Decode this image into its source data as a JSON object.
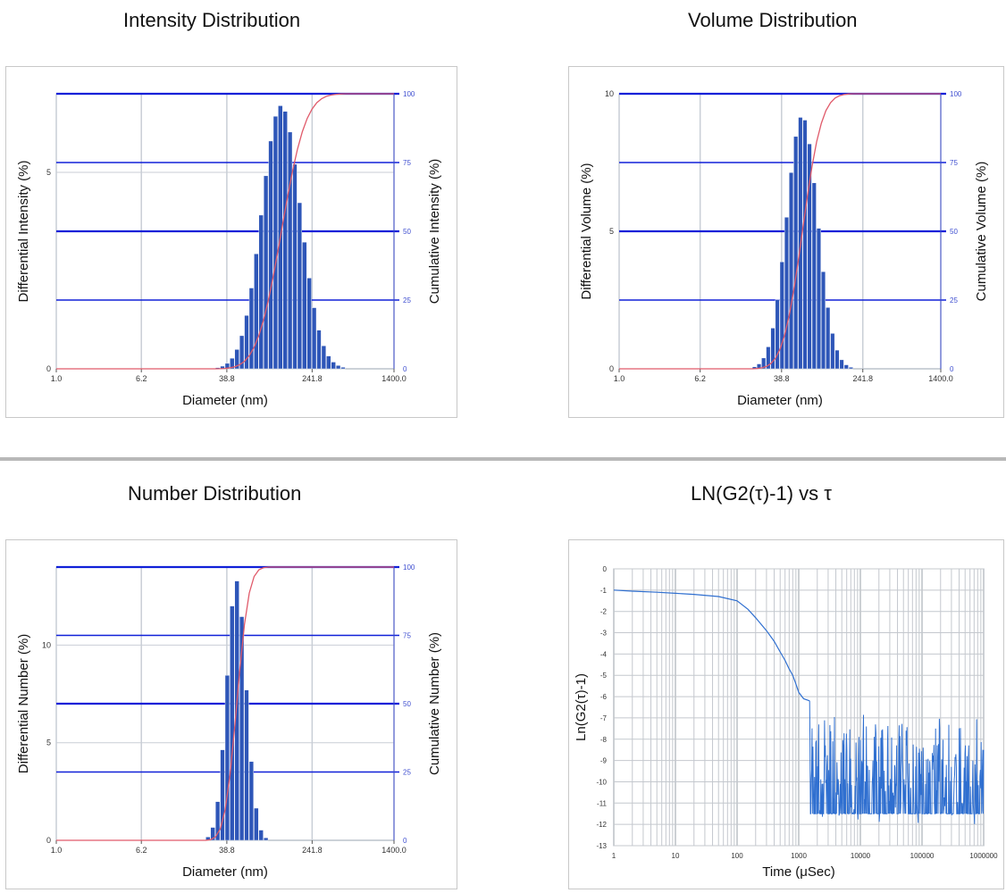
{
  "chart_data": [
    {
      "type": "bar",
      "title": "Intensity Distribution",
      "xlabel": "Diameter (nm)",
      "ylabel": "Differential Intensity (%)",
      "y2label": "Cumulative Intensity (%)",
      "xscale": "log",
      "xlim": [
        1.0,
        1400.0
      ],
      "xticks": [
        "1.0",
        "6.2",
        "38.8",
        "241.8",
        "1400.0"
      ],
      "ylim": [
        0,
        7
      ],
      "yticks": [
        "0",
        "5"
      ],
      "y2lim": [
        0,
        100
      ],
      "y2ticks": [
        "0",
        "25",
        "50",
        "75",
        "100"
      ],
      "bar_color": "#2e56b8",
      "cumulative_color": "#e05a6a",
      "peak_d": 125,
      "sigma_log10": 0.18,
      "peak_value": 6.7
    },
    {
      "type": "bar",
      "title": "Volume Distribution",
      "xlabel": "Diameter (nm)",
      "ylabel": "Differential Volume (%)",
      "y2label": "Cumulative Volume (%)",
      "xscale": "log",
      "xlim": [
        1.0,
        1400.0
      ],
      "xticks": [
        "1.0",
        "6.2",
        "38.8",
        "241.8",
        "1400.0"
      ],
      "ylim": [
        0,
        10
      ],
      "yticks": [
        "0",
        "5",
        "10"
      ],
      "y2lim": [
        0,
        100
      ],
      "y2ticks": [
        "0",
        "25",
        "50",
        "75",
        "100"
      ],
      "bar_color": "#2e56b8",
      "cumulative_color": "#e05a6a",
      "peak_d": 62,
      "sigma_log10": 0.15,
      "peak_value": 9.2
    },
    {
      "type": "bar",
      "title": "Number Distribution",
      "xlabel": "Diameter (nm)",
      "ylabel": "Differential Number (%)",
      "y2label": "Cumulative Number (%)",
      "xscale": "log",
      "xlim": [
        1.0,
        1400.0
      ],
      "xticks": [
        "1.0",
        "6.2",
        "38.8",
        "241.8",
        "1400.0"
      ],
      "ylim": [
        0,
        14
      ],
      "yticks": [
        "0",
        "5",
        "10"
      ],
      "y2lim": [
        0,
        100
      ],
      "y2ticks": [
        "0",
        "25",
        "50",
        "75",
        "100"
      ],
      "bar_color": "#2e56b8",
      "cumulative_color": "#e05a6a",
      "peak_d": 48,
      "sigma_log10": 0.09,
      "peak_value": 13.3
    },
    {
      "type": "line",
      "title": "LN(G2(τ)-1) vs τ",
      "xlabel": "Time (μSec)",
      "ylabel": "Ln(G2(τ)-1)",
      "xscale": "log",
      "xlim": [
        1,
        1000000
      ],
      "xticks": [
        "1",
        "10",
        "100",
        "1000",
        "10000",
        "100000",
        "1000000"
      ],
      "ylim": [
        -13,
        0
      ],
      "yticks": [
        "0",
        "-1",
        "-2",
        "-3",
        "-4",
        "-5",
        "-6",
        "-7",
        "-8",
        "-9",
        "-10",
        "-11",
        "-12",
        "-13"
      ],
      "line_color": "#2f6fd0",
      "x": [
        1,
        2,
        5,
        10,
        20,
        50,
        100,
        150,
        200,
        300,
        400,
        500,
        600,
        700,
        800,
        900,
        1000,
        1200,
        1500
      ],
      "y": [
        -1.0,
        -1.05,
        -1.1,
        -1.15,
        -1.2,
        -1.3,
        -1.5,
        -1.9,
        -2.3,
        -2.9,
        -3.4,
        -3.9,
        -4.3,
        -4.7,
        -5.0,
        -5.4,
        -5.8,
        -6.1,
        -6.2
      ],
      "noise_floor": -11.5,
      "noise_top": -6.5
    }
  ]
}
